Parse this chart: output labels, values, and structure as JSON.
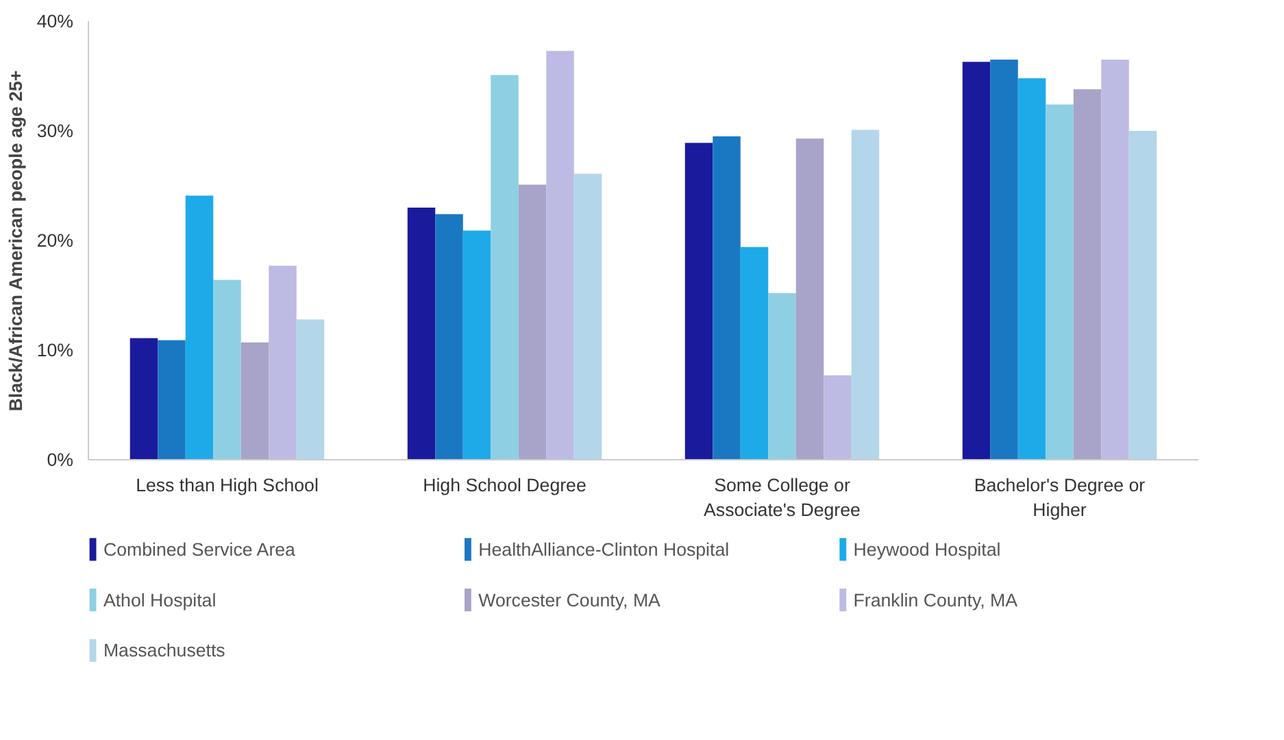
{
  "chart_data": {
    "type": "bar",
    "ylabel": "Black/African American people age 25+",
    "categories": [
      "Less than High School",
      "High School Degree",
      "Some College or Associate's Degree",
      "Bachelor's Degree or Higher"
    ],
    "series": [
      {
        "name": "Combined Service Area",
        "color": "#1a1a9c",
        "values": [
          11.1,
          23.0,
          28.9,
          36.3
        ]
      },
      {
        "name": "HealthAlliance-Clinton Hospital",
        "color": "#1a78c2",
        "values": [
          10.9,
          22.4,
          29.5,
          36.5
        ]
      },
      {
        "name": "Heywood Hospital",
        "color": "#1eaae8",
        "values": [
          24.1,
          20.9,
          19.4,
          34.8
        ]
      },
      {
        "name": "Athol Hospital",
        "color": "#8ecfe3",
        "values": [
          16.4,
          35.1,
          15.2,
          32.4
        ]
      },
      {
        "name": "Worcester County, MA",
        "color": "#a8a3c8",
        "values": [
          10.7,
          25.1,
          29.3,
          33.8
        ]
      },
      {
        "name": "Franklin County, MA",
        "color": "#bdbbe3",
        "values": [
          17.7,
          37.3,
          7.7,
          36.5
        ]
      },
      {
        "name": "Massachusetts",
        "color": "#b3d6ea",
        "values": [
          12.8,
          26.1,
          30.1,
          30.0
        ]
      }
    ],
    "ylim": [
      0,
      40
    ],
    "yticks": [
      {
        "value": 0,
        "label": "0%"
      },
      {
        "value": 10,
        "label": "10%"
      },
      {
        "value": 20,
        "label": "20%"
      },
      {
        "value": 30,
        "label": "30%"
      },
      {
        "value": 40,
        "label": "40%"
      }
    ],
    "grid": false,
    "legend": "bottom"
  }
}
